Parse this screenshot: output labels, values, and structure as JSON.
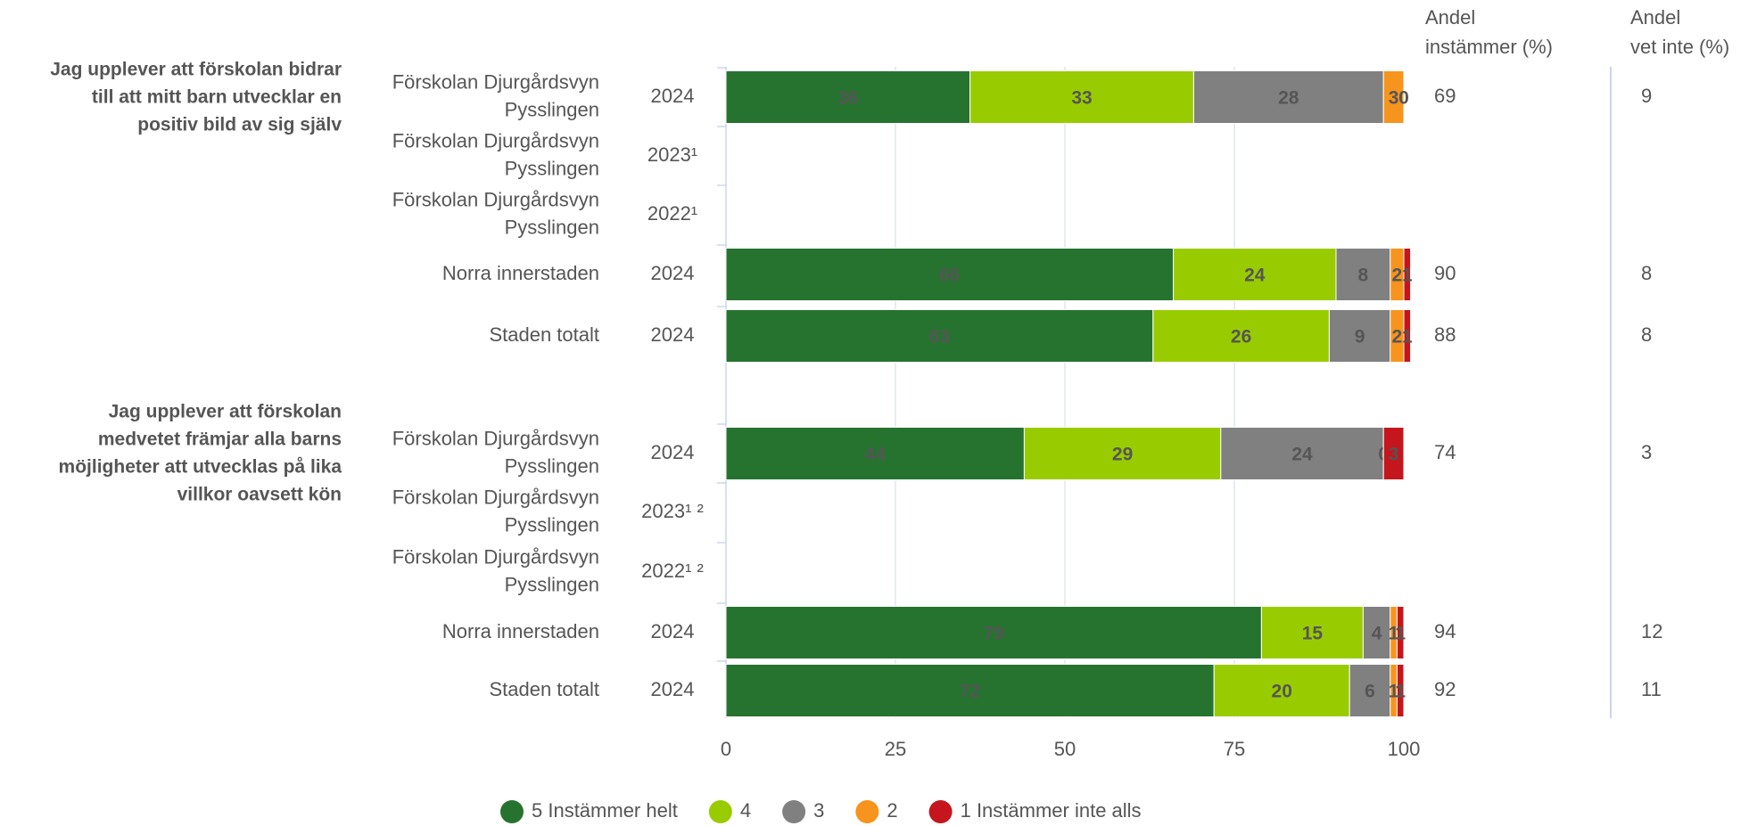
{
  "chart_data": {
    "type": "stacked-bar",
    "orientation": "horizontal",
    "xlim": [
      0,
      100
    ],
    "xticks": [
      0,
      25,
      50,
      75,
      100
    ],
    "grid": true,
    "legend": "bottom",
    "agree_header": [
      "Andel",
      "instämmer (%)"
    ],
    "dontknow_header": [
      "Andel",
      "vet inte (%)"
    ],
    "series": [
      {
        "name": "5 Instämmer helt",
        "color": "#267330"
      },
      {
        "name": "4",
        "color": "#99cc00"
      },
      {
        "name": "3",
        "color": "#808080"
      },
      {
        "name": "2",
        "color": "#f7941d"
      },
      {
        "name": "1 Instämmer inte alls",
        "color": "#c4161c"
      }
    ],
    "groups": [
      {
        "question": [
          "Jag upplever att förskolan bidrar",
          "till att mitt barn utvecklar en",
          "positiv bild av sig själv"
        ],
        "categories": [
          [
            "Förskolan Djurgårdsvyn",
            "Pysslingen"
          ],
          [
            "Förskolan Djurgårdsvyn",
            "Pysslingen"
          ],
          [
            "Förskolan Djurgårdsvyn",
            "Pysslingen"
          ],
          [
            "Norra innerstaden"
          ],
          [
            "Staden totalt"
          ]
        ],
        "years": [
          "2024",
          "2023¹",
          "2022¹",
          "2024",
          "2024"
        ],
        "values": [
          [
            36,
            null,
            null,
            66,
            63
          ],
          [
            33,
            null,
            null,
            24,
            26
          ],
          [
            28,
            null,
            null,
            8,
            9
          ],
          [
            3,
            null,
            null,
            2,
            2
          ],
          [
            0,
            null,
            null,
            1,
            1
          ]
        ],
        "agree": [
          69,
          null,
          null,
          90,
          88
        ],
        "dont_know": [
          9,
          null,
          null,
          8,
          8
        ]
      },
      {
        "question": [
          "Jag upplever att förskolan",
          "medvetet främjar alla barns",
          "möjligheter att utvecklas på lika",
          "villkor oavsett kön"
        ],
        "categories": [
          [
            "Förskolan Djurgårdsvyn",
            "Pysslingen"
          ],
          [
            "Förskolan Djurgårdsvyn",
            "Pysslingen"
          ],
          [
            "Förskolan Djurgårdsvyn",
            "Pysslingen"
          ],
          [
            "Norra innerstaden"
          ],
          [
            "Staden totalt"
          ]
        ],
        "years": [
          "2024",
          "2023¹ ²",
          "2022¹ ²",
          "2024",
          "2024"
        ],
        "values": [
          [
            44,
            null,
            null,
            79,
            72
          ],
          [
            29,
            null,
            null,
            15,
            20
          ],
          [
            24,
            null,
            null,
            4,
            6
          ],
          [
            0,
            null,
            null,
            1,
            1
          ],
          [
            3,
            null,
            null,
            1,
            1
          ]
        ],
        "agree": [
          74,
          null,
          null,
          94,
          92
        ],
        "dont_know": [
          3,
          null,
          null,
          12,
          11
        ]
      }
    ]
  }
}
